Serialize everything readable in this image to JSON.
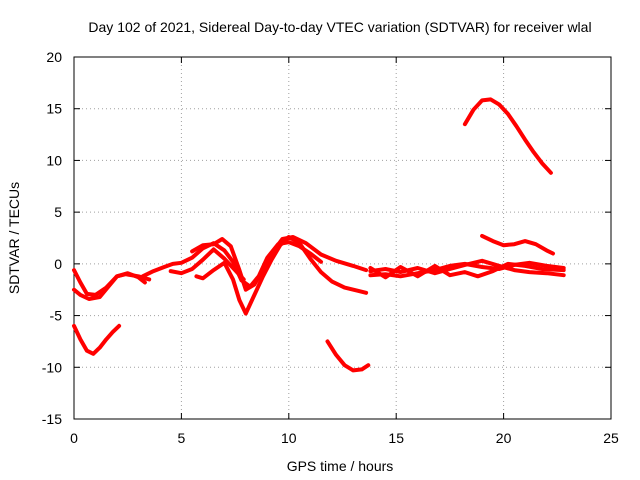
{
  "chart_data": {
    "type": "line",
    "title": "Day 102 of 2021, Sidereal Day-to-day VTEC variation (SDTVAR) for receiver wlal",
    "xlabel": "GPS time / hours",
    "ylabel": "SDTVAR / TECUs",
    "xlim": [
      0,
      25
    ],
    "ylim": [
      -15,
      20
    ],
    "xticks": [
      0,
      5,
      10,
      15,
      20,
      25
    ],
    "yticks": [
      -15,
      -10,
      -5,
      0,
      5,
      10,
      15,
      20
    ],
    "grid": true,
    "color": "#ff0000",
    "series": [
      {
        "name": "s1",
        "x": [
          0,
          0.3,
          0.6,
          0.9,
          1.2,
          1.5,
          1.8,
          2.1
        ],
        "y": [
          -6.0,
          -7.3,
          -8.4,
          -8.7,
          -8.1,
          -7.3,
          -6.6,
          -6.0
        ]
      },
      {
        "name": "s2",
        "x": [
          0,
          0.3,
          0.7,
          1.2,
          1.6,
          2.0,
          2.4,
          3.0,
          3.5
        ],
        "y": [
          -2.5,
          -3.0,
          -3.4,
          -3.2,
          -2.2,
          -1.2,
          -1.0,
          -1.2,
          -1.5
        ]
      },
      {
        "name": "s3",
        "x": [
          0,
          0.3,
          0.6,
          1.0,
          1.5,
          2.0,
          2.5,
          3.0,
          3.3
        ],
        "y": [
          -0.6,
          -1.8,
          -2.9,
          -3.0,
          -2.3,
          -1.2,
          -0.9,
          -1.3,
          -1.8
        ]
      },
      {
        "name": "s4",
        "x": [
          3.2,
          3.7,
          4.2,
          4.6,
          5.0,
          5.5,
          6.0,
          6.5,
          7.0,
          7.4,
          7.8,
          8.2,
          8.6,
          9.0,
          9.5,
          10.0,
          10.5,
          11.0,
          11.5
        ],
        "y": [
          -1.2,
          -0.7,
          -0.3,
          0.0,
          0.1,
          0.6,
          1.5,
          2.0,
          1.3,
          0.2,
          -1.6,
          -2.2,
          -1.2,
          0.6,
          1.9,
          2.1,
          1.7,
          1.0,
          0.2
        ]
      },
      {
        "name": "s5",
        "x": [
          4.5,
          5.0,
          5.5,
          6.0,
          6.5,
          7.0,
          7.5,
          7.9
        ],
        "y": [
          -0.7,
          -0.9,
          -0.5,
          0.4,
          1.4,
          0.5,
          -0.6,
          -1.5
        ]
      },
      {
        "name": "s6",
        "x": [
          5.5,
          6.0,
          6.5,
          6.9,
          7.3,
          7.7,
          8.0,
          8.4,
          8.8,
          9.2,
          9.7,
          10.2,
          10.8,
          11.5,
          12.2,
          13.0,
          13.6
        ],
        "y": [
          1.2,
          1.8,
          1.9,
          2.4,
          1.7,
          -0.6,
          -2.5,
          -2.0,
          -0.6,
          1.0,
          2.4,
          2.6,
          2.0,
          0.9,
          0.3,
          -0.2,
          -0.6
        ]
      },
      {
        "name": "s7",
        "x": [
          5.7,
          6.0,
          6.5,
          7.0,
          7.4,
          7.7,
          8.0,
          8.4,
          8.8,
          9.2,
          9.6,
          10.0,
          10.5,
          11.0,
          11.5,
          12.0,
          12.6,
          13.2,
          13.6
        ],
        "y": [
          -1.2,
          -1.4,
          -0.6,
          0.1,
          -1.5,
          -3.5,
          -4.8,
          -3.0,
          -1.2,
          0.4,
          1.8,
          2.6,
          2.0,
          0.5,
          -0.8,
          -1.7,
          -2.3,
          -2.6,
          -2.8
        ]
      },
      {
        "name": "s8",
        "x": [
          11.8,
          12.2,
          12.6,
          13.0,
          13.4,
          13.7
        ],
        "y": [
          -7.5,
          -8.8,
          -9.8,
          -10.3,
          -10.2,
          -9.8
        ]
      },
      {
        "name": "s9",
        "x": [
          13.8,
          14.5,
          15.2,
          16.0,
          16.8,
          17.5,
          18.2,
          19.0,
          19.8,
          20.5,
          21.2,
          22.0,
          22.8
        ],
        "y": [
          -0.7,
          -0.5,
          -0.8,
          -0.4,
          -0.9,
          -0.5,
          -0.1,
          0.3,
          -0.2,
          -0.6,
          -0.8,
          -0.9,
          -1.1
        ]
      },
      {
        "name": "s10",
        "x": [
          13.8,
          14.5,
          15.2,
          16.0,
          16.8,
          17.5,
          18.2,
          19.0,
          19.8,
          20.5,
          21.2,
          22.0,
          22.8
        ],
        "y": [
          -1.1,
          -1.0,
          -1.2,
          -0.9,
          -0.6,
          -0.2,
          0.0,
          -0.3,
          -0.5,
          -0.1,
          0.1,
          -0.2,
          -0.4
        ]
      },
      {
        "name": "s11",
        "x": [
          13.8,
          14.5,
          15.2,
          16.0,
          16.8,
          17.5,
          18.2,
          18.8,
          19.5,
          20.2,
          21.0,
          21.8,
          22.8
        ],
        "y": [
          -0.4,
          -1.3,
          -0.3,
          -1.2,
          -0.2,
          -1.1,
          -0.8,
          -1.2,
          -0.7,
          0.0,
          -0.2,
          -0.5,
          -0.6
        ]
      },
      {
        "name": "s12",
        "x": [
          18.2,
          18.6,
          19.0,
          19.4,
          19.8,
          20.2,
          20.6,
          21.0,
          21.4,
          21.8,
          22.2
        ],
        "y": [
          13.5,
          14.9,
          15.8,
          15.9,
          15.4,
          14.5,
          13.3,
          12.0,
          10.8,
          9.7,
          8.8
        ]
      },
      {
        "name": "s13",
        "x": [
          19.0,
          19.5,
          20.0,
          20.5,
          21.0,
          21.5,
          22.0,
          22.3
        ],
        "y": [
          2.7,
          2.2,
          1.8,
          1.9,
          2.2,
          1.9,
          1.3,
          1.0
        ]
      }
    ]
  }
}
